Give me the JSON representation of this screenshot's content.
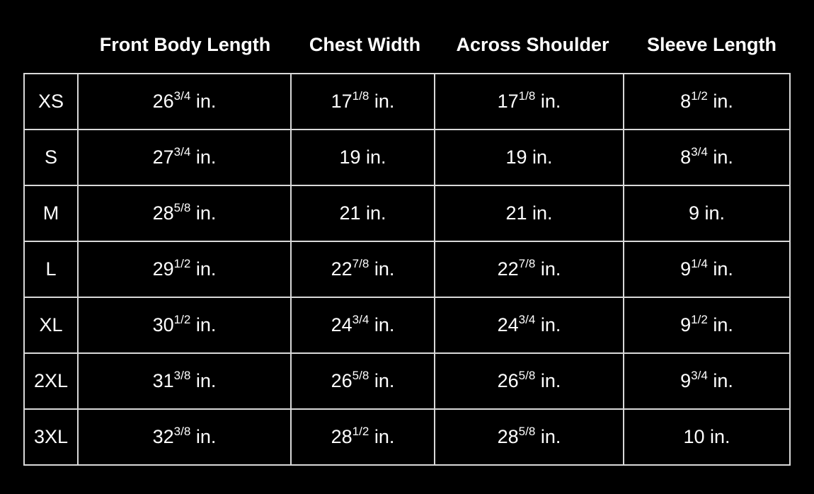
{
  "headers": [
    "Front Body Length",
    "Chest Width",
    "Across Shoulder",
    "Sleeve Length"
  ],
  "unit": "in.",
  "rows": [
    {
      "size": "XS",
      "cells": [
        {
          "whole": "26",
          "frac": "3/4"
        },
        {
          "whole": "17",
          "frac": "1/8"
        },
        {
          "whole": "17",
          "frac": "1/8"
        },
        {
          "whole": "8",
          "frac": "1/2"
        }
      ]
    },
    {
      "size": "S",
      "cells": [
        {
          "whole": "27",
          "frac": "3/4"
        },
        {
          "whole": "19",
          "frac": ""
        },
        {
          "whole": "19",
          "frac": ""
        },
        {
          "whole": "8",
          "frac": "3/4"
        }
      ]
    },
    {
      "size": "M",
      "cells": [
        {
          "whole": "28",
          "frac": "5/8"
        },
        {
          "whole": "21",
          "frac": ""
        },
        {
          "whole": "21",
          "frac": ""
        },
        {
          "whole": "9",
          "frac": ""
        }
      ]
    },
    {
      "size": "L",
      "cells": [
        {
          "whole": "29",
          "frac": "1/2"
        },
        {
          "whole": "22",
          "frac": "7/8"
        },
        {
          "whole": "22",
          "frac": "7/8"
        },
        {
          "whole": "9",
          "frac": "1/4"
        }
      ]
    },
    {
      "size": "XL",
      "cells": [
        {
          "whole": "30",
          "frac": "1/2"
        },
        {
          "whole": "24",
          "frac": "3/4"
        },
        {
          "whole": "24",
          "frac": "3/4"
        },
        {
          "whole": "9",
          "frac": "1/2"
        }
      ]
    },
    {
      "size": "2XL",
      "cells": [
        {
          "whole": "31",
          "frac": "3/8"
        },
        {
          "whole": "26",
          "frac": "5/8"
        },
        {
          "whole": "26",
          "frac": "5/8"
        },
        {
          "whole": "9",
          "frac": "3/4"
        }
      ]
    },
    {
      "size": "3XL",
      "cells": [
        {
          "whole": "32",
          "frac": "3/8"
        },
        {
          "whole": "28",
          "frac": "1/2"
        },
        {
          "whole": "28",
          "frac": "5/8"
        },
        {
          "whole": "10",
          "frac": ""
        }
      ]
    }
  ]
}
